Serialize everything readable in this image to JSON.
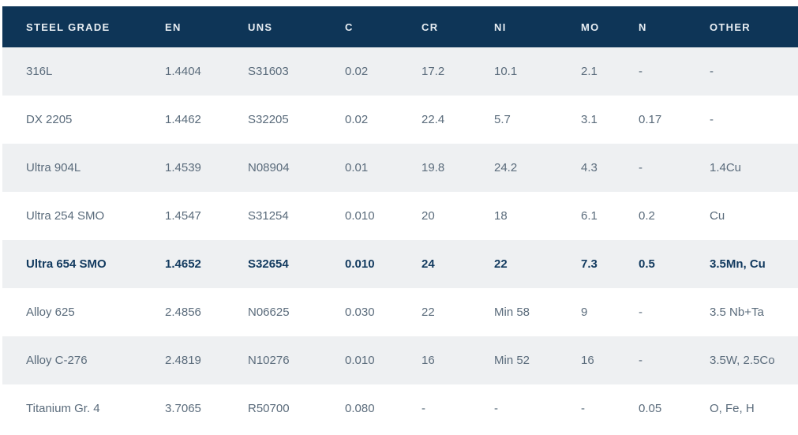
{
  "chart_data": {
    "type": "table",
    "columns": [
      "STEEL GRADE",
      "EN",
      "UNS",
      "C",
      "CR",
      "NI",
      "MO",
      "N",
      "OTHER"
    ],
    "rows": [
      {
        "cells": [
          "316L",
          "1.4404",
          "S31603",
          "0.02",
          "17.2",
          "10.1",
          "2.1",
          "-",
          "-"
        ],
        "highlight": false
      },
      {
        "cells": [
          "DX 2205",
          "1.4462",
          "S32205",
          "0.02",
          "22.4",
          "5.7",
          "3.1",
          "0.17",
          "-"
        ],
        "highlight": false
      },
      {
        "cells": [
          "Ultra 904L",
          "1.4539",
          "N08904",
          "0.01",
          "19.8",
          "24.2",
          "4.3",
          "-",
          "1.4Cu"
        ],
        "highlight": false
      },
      {
        "cells": [
          "Ultra 254 SMO",
          "1.4547",
          "S31254",
          "0.010",
          "20",
          "18",
          "6.1",
          "0.2",
          "Cu"
        ],
        "highlight": false
      },
      {
        "cells": [
          "Ultra 654 SMO",
          "1.4652",
          "S32654",
          "0.010",
          "24",
          "22",
          "7.3",
          "0.5",
          "3.5Mn, Cu"
        ],
        "highlight": true
      },
      {
        "cells": [
          "Alloy 625",
          "2.4856",
          "N06625",
          "0.030",
          "22",
          "Min 58",
          "9",
          "-",
          "3.5 Nb+Ta"
        ],
        "highlight": false
      },
      {
        "cells": [
          "Alloy C-276",
          "2.4819",
          "N10276",
          "0.010",
          "16",
          "Min 52",
          "16",
          "-",
          "3.5W, 2.5Co"
        ],
        "highlight": false
      },
      {
        "cells": [
          "Titanium Gr. 4",
          "3.7065",
          "R50700",
          "0.080",
          "-",
          "-",
          "-",
          "0.05",
          "O, Fe, H"
        ],
        "highlight": false
      }
    ],
    "highlighted_row": "Ultra 654 SMO",
    "legend_position": "none",
    "grid": "row-banding"
  },
  "colors": {
    "header_bg": "#0e3557",
    "header_text": "#e8eef3",
    "row_alt_bg": "#eef0f2",
    "row_bg": "#ffffff",
    "text": "#5a6b7b",
    "highlight_text": "#123a5f"
  }
}
